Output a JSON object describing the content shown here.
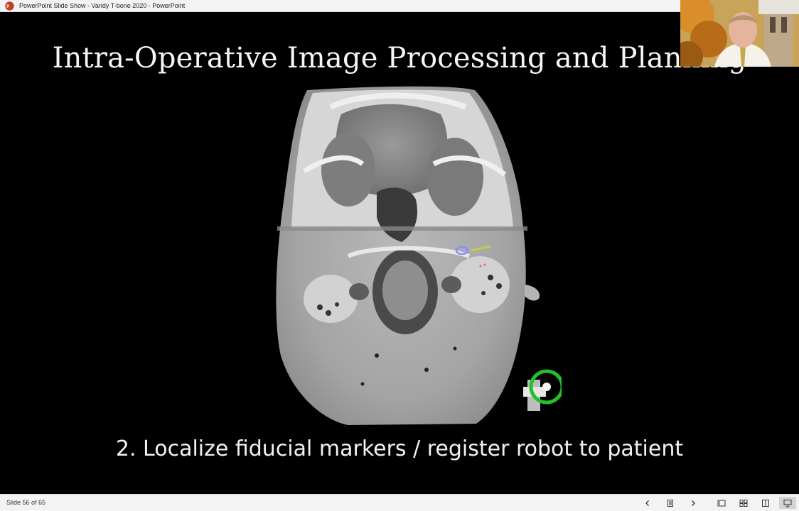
{
  "window": {
    "title": "PowerPoint Slide Show  -  Vandy T-bone 2020 - PowerPoint",
    "app_icon": "powerpoint-icon",
    "accent_color": "#c43e1c"
  },
  "slide": {
    "title": "Intra-Operative Image Processing and Planning",
    "caption": "2. Localize fiducial markers / register robot to patient",
    "image": "axial CT scan of skull base",
    "marker_highlight_color": "#22c02a"
  },
  "webcam": {
    "content": "presenter video feed"
  },
  "statusbar": {
    "slide_counter": "Slide 56 of 65",
    "buttons": [
      {
        "icon": "previous-icon"
      },
      {
        "icon": "slide-sorter-icon"
      },
      {
        "icon": "next-icon"
      },
      {
        "icon": "normal-view-icon"
      },
      {
        "icon": "grid-view-icon"
      },
      {
        "icon": "reading-view-icon"
      },
      {
        "icon": "slide-show-icon",
        "active": true
      }
    ]
  }
}
